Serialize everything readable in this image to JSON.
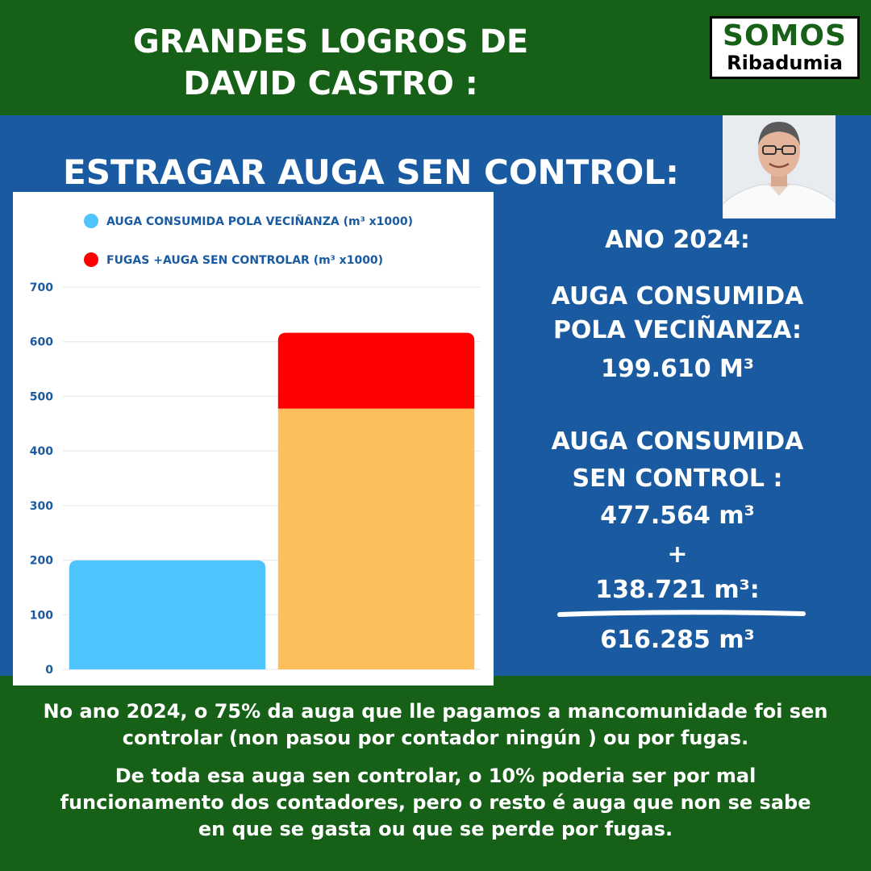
{
  "header": {
    "title_line1": "GRANDES LOGROS DE",
    "title_line2": "DAVID CASTRO :"
  },
  "logo": {
    "line1": "SOMOS",
    "line2": "Ribadumia"
  },
  "subtitle": "ESTRAGAR AUGA SEN CONTROL:",
  "stats": {
    "year": "ANO 2024:",
    "consumed_l1": "AUGA CONSUMIDA",
    "consumed_l2": "POLA VECIÑANZA:",
    "consumed_value": "199.610 M³",
    "uncontrolled_l1": "AUGA CONSUMIDA",
    "uncontrolled_l2": "SEN CONTROL :",
    "uncontrolled_value": "477.564 m³",
    "plus": "+",
    "leaks_value": "138.721 m³:",
    "total_value": "616.285 m³"
  },
  "footer": {
    "p1_l1": "No ano 2024,  o 75% da auga que lle pagamos a mancomunidade foi sen",
    "p1_l2": "controlar (non pasou por contador ningún ) ou por fugas.",
    "p2_l1": "De toda esa auga sen controlar, o 10% poderia ser por mal",
    "p2_l2": "funcionamento dos contadores, pero  o resto é auga que non se sabe",
    "p2_l3": "en que se gasta ou que  se perde por fugas."
  },
  "colors": {
    "green": "#176017",
    "blue": "#1a5aa0",
    "consumed": "#4fc3fb",
    "uncontrolled": "#fdbf5c",
    "leaks": "#ff0000",
    "axis_text": "#1a5aa0"
  },
  "chart_data": {
    "type": "bar",
    "stacked": true,
    "categories": [
      "",
      ""
    ],
    "legend": [
      {
        "label": "AUGA CONSUMIDA POLA VECIÑANZA (m³ x1000)",
        "color": "#4fc3fb"
      },
      {
        "label": "FUGAS +AUGA SEN CONTROLAR (m³ x1000)",
        "color": "#ff0000"
      }
    ],
    "series": [
      {
        "name": "AUGA CONSUMIDA POLA VECIÑANZA (m³ x1000)",
        "color": "#4fc3fb",
        "values": [
          199.61,
          0
        ]
      },
      {
        "name": "",
        "color": "#fdbf5c",
        "values": [
          0,
          477.564
        ]
      },
      {
        "name": "FUGAS +AUGA SEN CONTROLAR (m³ x1000)",
        "color": "#ff0000",
        "values": [
          0,
          138.721
        ]
      }
    ],
    "yticks": [
      0,
      100,
      200,
      300,
      400,
      500,
      600,
      700
    ],
    "ylim": [
      0,
      700
    ],
    "grid": true,
    "legend_position": "top"
  }
}
